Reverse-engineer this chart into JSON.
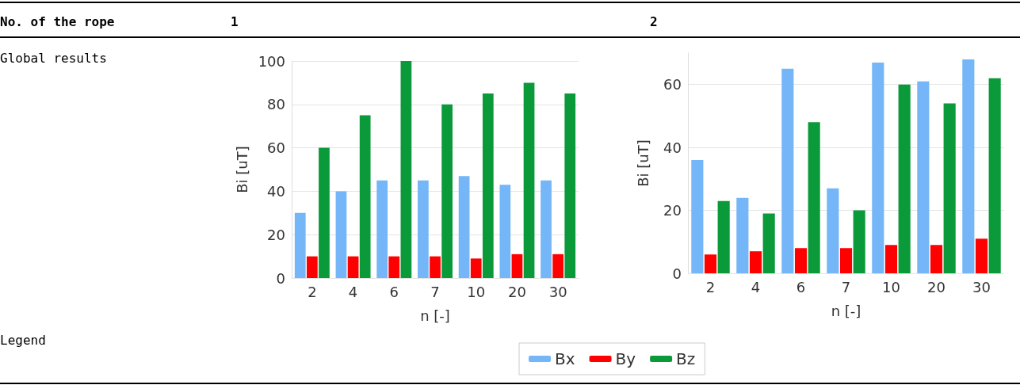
{
  "chart_data": [
    {
      "type": "bar",
      "title": "1",
      "annotations": [
        "No. of the rope",
        "Global results",
        "Legend"
      ],
      "xlabel": "n [-]",
      "ylabel": "Bi [uT]",
      "categories": [
        "2",
        "4",
        "6",
        "7",
        "10",
        "20",
        "30"
      ],
      "series": [
        {
          "color": "#74b6f7",
          "values": [
            30,
            40,
            45,
            45,
            47,
            43,
            45
          ]
        },
        {
          "color": "#ff0000",
          "values": [
            10,
            10,
            10,
            10,
            9,
            11,
            11
          ]
        },
        {
          "color": "#0a9a3a",
          "values": [
            60,
            75,
            100,
            80,
            85,
            90,
            85
          ]
        }
      ],
      "ylim": [
        0,
        100
      ],
      "yticks": [
        0,
        20,
        40,
        60,
        80,
        100
      ],
      "grid": "y"
    },
    {
      "type": "bar",
      "title": "2",
      "xlabel": "n [-]",
      "ylabel": "Bi [uT]",
      "categories": [
        "2",
        "4",
        "6",
        "7",
        "10",
        "20",
        "30"
      ],
      "series": [
        {
          "name": "Bx",
          "color": "#74b6f7",
          "values": [
            36,
            24,
            65,
            27,
            67,
            61,
            68
          ]
        },
        {
          "name": "By",
          "color": "#ff0000",
          "values": [
            6,
            7,
            8,
            8,
            9,
            9,
            11
          ]
        },
        {
          "name": "Bz",
          "color": "#0a9a3a",
          "values": [
            23,
            19,
            48,
            20,
            60,
            54,
            62
          ]
        }
      ],
      "ylim": [
        0,
        70
      ],
      "yticks": [
        0,
        20,
        40,
        60
      ],
      "grid": "y",
      "legend": "bottom left"
    }
  ]
}
